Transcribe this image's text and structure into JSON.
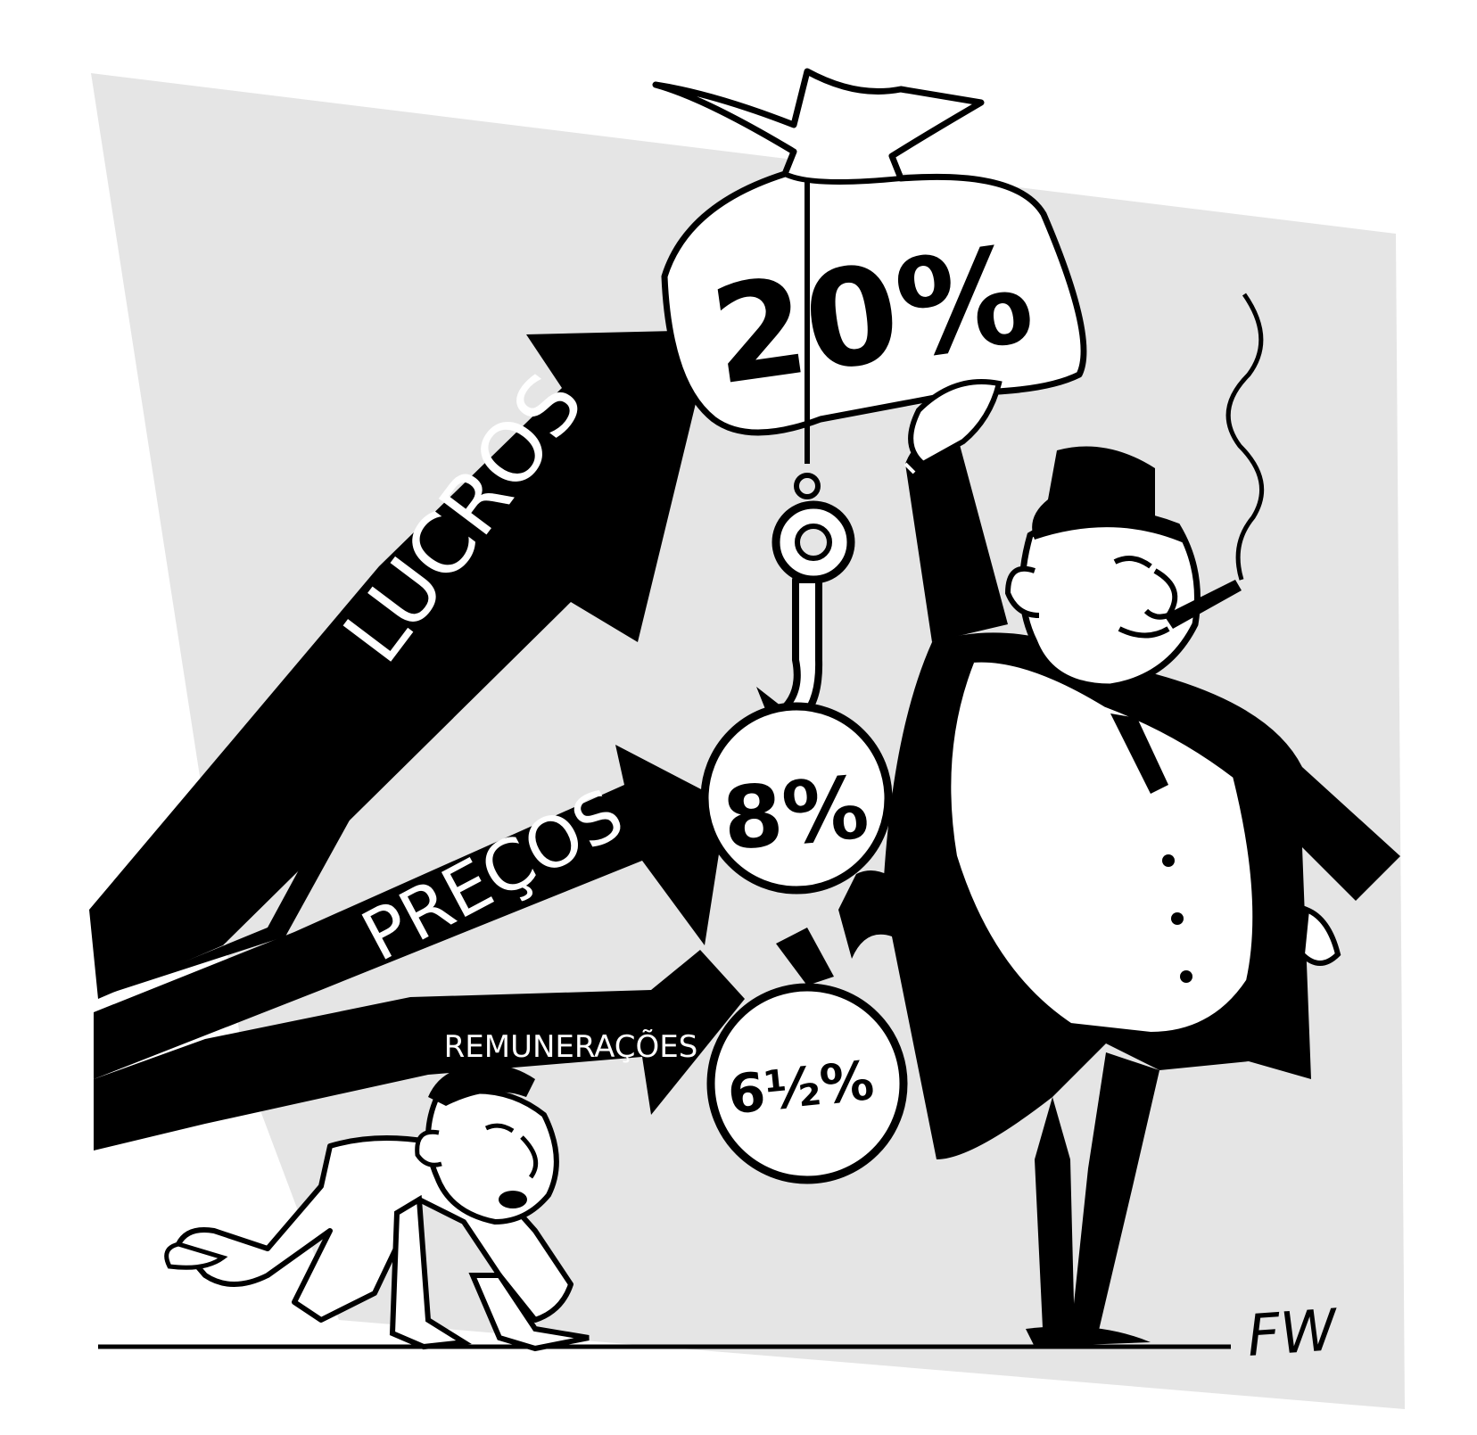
{
  "colors": {
    "background": "#ffffff",
    "panel": "#e5e5e5",
    "ink": "#000000",
    "paper": "#ffffff"
  },
  "arrows": {
    "lucros": {
      "label": "LUCROS"
    },
    "precos": {
      "label": "PREÇOS"
    },
    "remuneracoes": {
      "label": "REMUNERAÇÕES"
    }
  },
  "values": {
    "profit_bag": "20%",
    "price_weight": "8%",
    "wage_weight": "6½%"
  },
  "signature": "FW"
}
